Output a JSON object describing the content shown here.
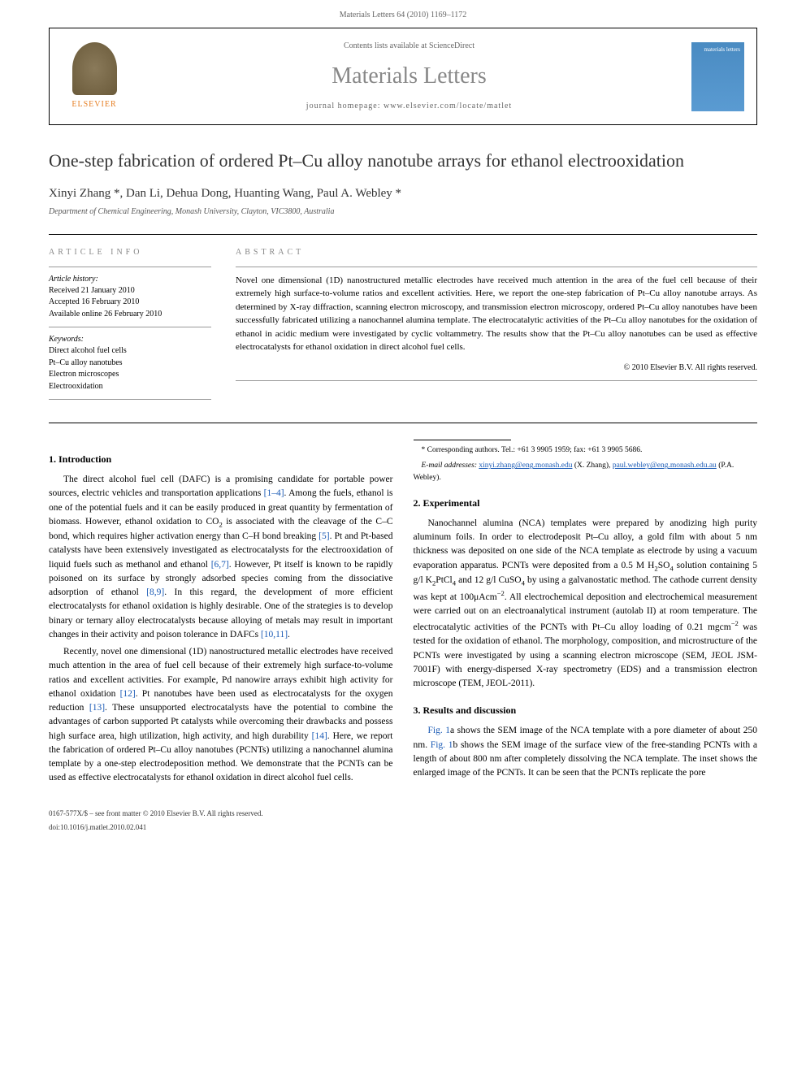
{
  "running_header": "Materials Letters 64 (2010) 1169–1172",
  "journal_box": {
    "elsevier": "ELSEVIER",
    "contents": "Contents lists available at ",
    "sciencedirect": "ScienceDirect",
    "journal_name": "Materials Letters",
    "homepage": "journal homepage: www.elsevier.com/locate/matlet",
    "cover_text": "materials letters"
  },
  "title": "One-step fabrication of ordered Pt–Cu alloy nanotube arrays for ethanol electrooxidation",
  "authors": "Xinyi Zhang *, Dan Li, Dehua Dong, Huanting Wang, Paul A. Webley *",
  "affiliation": "Department of Chemical Engineering, Monash University, Clayton, VIC3800, Australia",
  "article_info": {
    "heading": "ARTICLE INFO",
    "history_label": "Article history:",
    "received": "Received 21 January 2010",
    "accepted": "Accepted 16 February 2010",
    "online": "Available online 26 February 2010",
    "keywords_label": "Keywords:",
    "kw1": "Direct alcohol fuel cells",
    "kw2": "Pt–Cu alloy nanotubes",
    "kw3": "Electron microscopes",
    "kw4": "Electrooxidation"
  },
  "abstract": {
    "heading": "ABSTRACT",
    "text": "Novel one dimensional (1D) nanostructured metallic electrodes have received much attention in the area of the fuel cell because of their extremely high surface-to-volume ratios and excellent activities. Here, we report the one-step fabrication of Pt–Cu alloy nanotube arrays. As determined by X-ray diffraction, scanning electron microscopy, and transmission electron microscopy, ordered Pt–Cu alloy nanotubes have been successfully fabricated utilizing a nanochannel alumina template. The electrocatalytic activities of the Pt–Cu alloy nanotubes for the oxidation of ethanol in acidic medium were investigated by cyclic voltammetry. The results show that the Pt–Cu alloy nanotubes can be used as effective electrocatalysts for ethanol oxidation in direct alcohol fuel cells.",
    "copyright": "© 2010 Elsevier B.V. All rights reserved."
  },
  "sections": {
    "s1_heading": "1. Introduction",
    "s1_p1a": "The direct alcohol fuel cell (DAFC) is a promising candidate for portable power sources, electric vehicles and transportation applications ",
    "s1_p1_r1": "[1–4]",
    "s1_p1b": ". Among the fuels, ethanol is one of the potential fuels and it can be easily produced in great quantity by fermentation of biomass. However, ethanol oxidation to CO",
    "s1_p1c": " is associated with the cleavage of the C–C bond, which requires higher activation energy than C–H bond breaking ",
    "s1_p1_r2": "[5]",
    "s1_p1d": ". Pt and Pt-based catalysts have been extensively investigated as electrocatalysts for the electrooxidation of liquid fuels such as methanol and ethanol ",
    "s1_p1_r3": "[6,7]",
    "s1_p1e": ". However, Pt itself is known to be rapidly poisoned on its surface by strongly adsorbed species coming from the dissociative adsorption of ethanol ",
    "s1_p1_r4": "[8,9]",
    "s1_p1f": ". In this regard, the development of more efficient electrocatalysts for ethanol oxidation is highly desirable. One of the strategies is to develop binary or ternary alloy electrocatalysts because alloying of metals may result in important changes in their activity and poison tolerance in DAFCs ",
    "s1_p1_r5": "[10,11]",
    "s1_p1g": ".",
    "s1_p2a": "Recently, novel one dimensional (1D) nanostructured metallic electrodes have received much attention in the area of fuel cell because of their extremely high surface-to-volume ratios and excellent activities. For example, Pd nanowire arrays exhibit high activity for ethanol oxidation ",
    "s1_p2_r1": "[12]",
    "s1_p2b": ". Pt nanotubes have been used as electrocatalysts for the oxygen reduction ",
    "s1_p2_r2": "[13]",
    "s1_p2c": ". These unsupported electrocatalysts have the potential to combine the advantages of carbon supported Pt catalysts while overcoming their drawbacks and possess high surface area, high utilization, high activity, and high durability ",
    "s1_p2_r3": "[14]",
    "s1_p2d": ". Here, we report the fabrication of ordered Pt–Cu alloy nanotubes (PCNTs) utilizing a nanochannel alumina template by a one-step electrodeposition method. We demonstrate that the PCNTs can be used as effective electrocatalysts for ethanol oxidation in direct alcohol fuel cells.",
    "s2_heading": "2. Experimental",
    "s2_p1a": "Nanochannel alumina (NCA) templates were prepared by anodizing high purity aluminum foils. In order to electrodeposit Pt–Cu alloy, a gold film with about 5 nm thickness was deposited on one side of the NCA template as electrode by using a vacuum evaporation apparatus. PCNTs were deposited from a 0.5 M H",
    "s2_p1b": "SO",
    "s2_p1c": " solution containing 5 g/l K",
    "s2_p1d": "PtCl",
    "s2_p1e": " and 12 g/l CuSO",
    "s2_p1f": " by using a galvanostatic method. The cathode current density was kept at 100μAcm",
    "s2_p1g": ". All electrochemical deposition and electrochemical measurement were carried out on an electroanalytical instrument (autolab II) at room temperature. The electrocatalytic activities of the PCNTs with Pt–Cu alloy loading of 0.21 mgcm",
    "s2_p1h": " was tested for the oxidation of ethanol. The morphology, composition, and microstructure of the PCNTs were investigated by using a scanning electron microscope (SEM, JEOL JSM-7001F) with energy-dispersed X-ray spectrometry (EDS) and a transmission electron microscope (TEM, JEOL-2011).",
    "s3_heading": "3. Results and discussion",
    "s3_p1a": "Fig. 1",
    "s3_p1b": "a shows the SEM image of the NCA template with a pore diameter of about 250 nm. ",
    "s3_p1c": "Fig. 1",
    "s3_p1d": "b shows the SEM image of the surface view of the free-standing PCNTs with a length of about 800 nm after completely dissolving the NCA template. The inset shows the enlarged image of the PCNTs. It can be seen that the PCNTs replicate the pore"
  },
  "footnotes": {
    "corr": "* Corresponding authors. Tel.: +61 3 9905 1959; fax: +61 3 9905 5686.",
    "email_label": "E-mail addresses: ",
    "email1": "xinyi.zhang@eng.monash.edu",
    "email1_who": " (X. Zhang),",
    "email2": "paul.webley@eng.monash.edu.au",
    "email2_who": " (P.A. Webley)."
  },
  "footer": {
    "line1": "0167-577X/$ – see front matter © 2010 Elsevier B.V. All rights reserved.",
    "line2": "doi:10.1016/j.matlet.2010.02.041"
  },
  "colors": {
    "link": "#1a5ab5",
    "gray": "#888"
  }
}
